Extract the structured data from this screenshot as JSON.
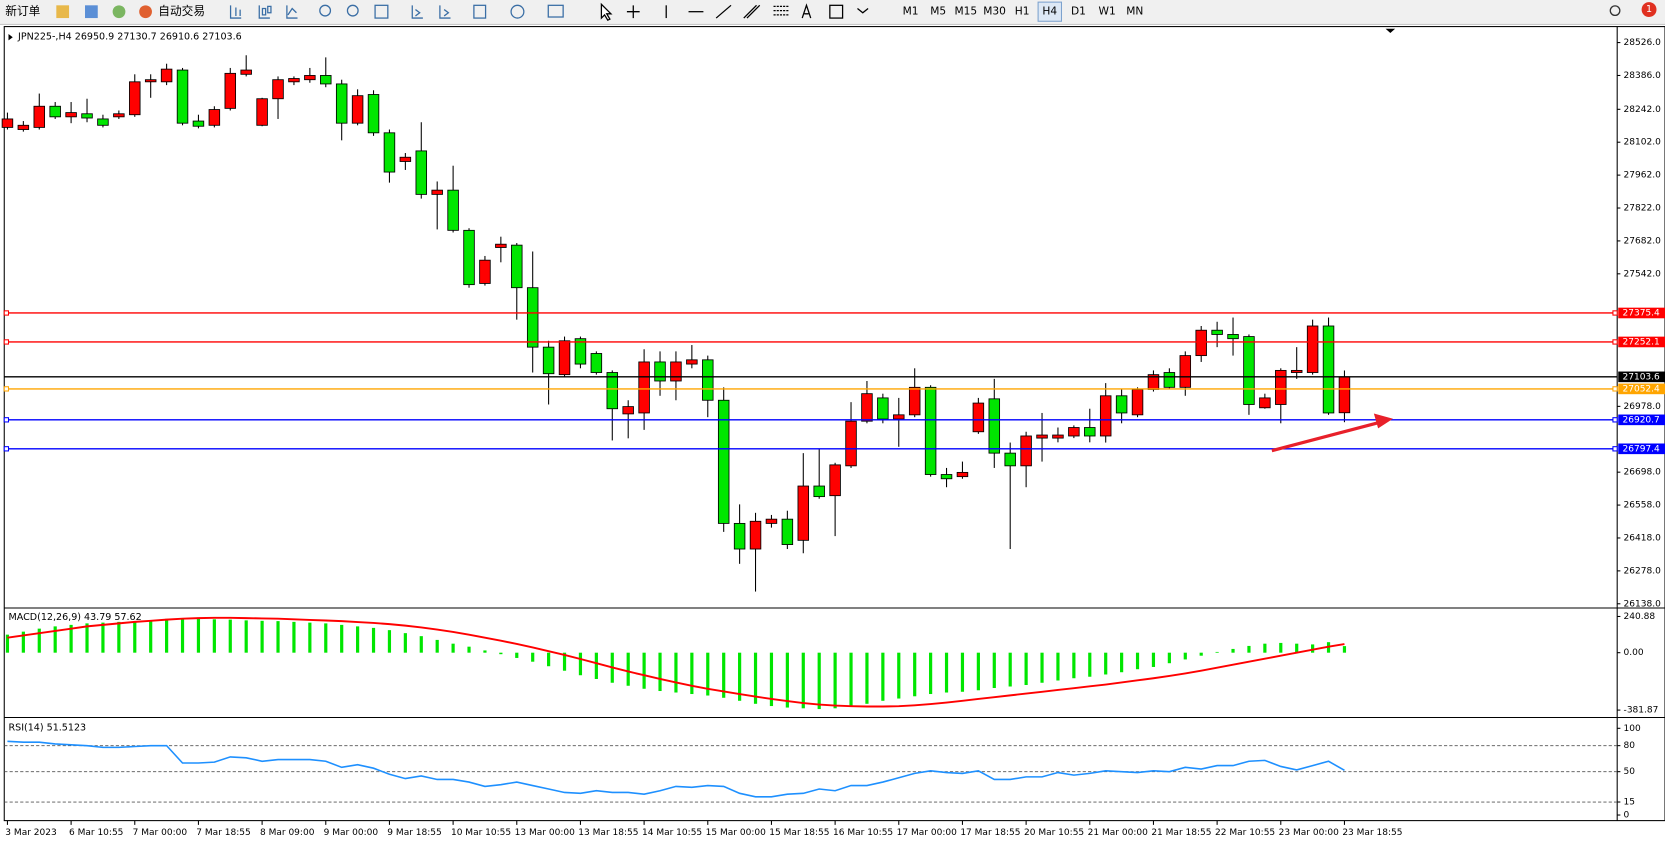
{
  "toolbar": {
    "buttons": [
      "新订单",
      "自动交易"
    ],
    "timeframes": [
      "M1",
      "M5",
      "M15",
      "M30",
      "H1",
      "H4",
      "D1",
      "W1",
      "MN"
    ],
    "notifications": 1
  },
  "chart_data": [
    {
      "type": "candlestick",
      "title": "JPN225-,H4  26950.9 27130.7 26910.6 27103.6",
      "categories": [
        "3 Mar 2023",
        null,
        null,
        null,
        "6 Mar 10:55",
        null,
        null,
        null,
        "7 Mar 00:00",
        null,
        null,
        null,
        "7 Mar 18:55",
        null,
        null,
        null,
        "8 Mar 09:00",
        null,
        null,
        null,
        "9 Mar 00:00",
        null,
        null,
        null,
        "9 Mar 18:55",
        null,
        null,
        null,
        "10 Mar 10:55",
        null,
        null,
        null,
        "13 Mar 00:00",
        null,
        null,
        null,
        "13 Mar 18:55",
        null,
        null,
        null,
        "14 Mar 10:55",
        null,
        null,
        null,
        "15 Mar 00:00",
        null,
        null,
        null,
        "15 Mar 18:55",
        null,
        null,
        null,
        "16 Mar 10:55",
        null,
        null,
        null,
        "17 Mar 00:00",
        null,
        null,
        null,
        "17 Mar 18:55",
        null,
        null,
        null,
        "20 Mar 10:55",
        null,
        null,
        null,
        "21 Mar 00:00",
        null,
        null,
        null,
        "21 Mar 18:55",
        null,
        null,
        null,
        "22 Mar 10:55",
        null,
        null,
        null,
        "23 Mar 00:00",
        null,
        null,
        null,
        "23 Mar 18:55"
      ],
      "open": [
        28165,
        28156,
        28165,
        28255,
        28210,
        28223,
        28201,
        28210,
        28219,
        28359,
        28359,
        28409,
        28192,
        28174,
        28246,
        28391,
        28174,
        28287,
        28359,
        28368,
        28386,
        28350,
        28183,
        28305,
        28142,
        28020,
        28065,
        27880,
        27898,
        27727,
        27501,
        27654,
        27664,
        27483,
        27230,
        27113,
        27266,
        27203,
        27122,
        26946,
        26950,
        27167,
        27086,
        27158,
        27176,
        27004,
        26480,
        26371,
        26480,
        26498,
        26408,
        26639,
        26598,
        26725,
        26915,
        27014,
        26924,
        26942,
        27059,
        26688,
        26679,
        26870,
        27010,
        26779,
        26725,
        26843,
        26843,
        26852,
        26888,
        26852,
        27023,
        26942,
        27050,
        27122,
        27059,
        27194,
        27302,
        27284,
        27275,
        26972,
        26986,
        27122,
        27122,
        27320,
        26950.9
      ],
      "high": [
        28228,
        28192,
        28309,
        28273,
        28273,
        28287,
        28219,
        28237,
        28391,
        28391,
        28436,
        28418,
        28219,
        28255,
        28418,
        28472,
        28291,
        28382,
        28382,
        28418,
        28463,
        28368,
        28327,
        28323,
        28156,
        28056,
        28187,
        27935,
        28002,
        27736,
        27618,
        27700,
        27673,
        27637,
        27257,
        27275,
        27275,
        27212,
        27131,
        27004,
        27221,
        27212,
        27212,
        27239,
        27194,
        27059,
        26561,
        26525,
        26516,
        26534,
        26779,
        26797,
        26738,
        26996,
        27086,
        27032,
        27014,
        27140,
        27068,
        26716,
        26743,
        27014,
        27095,
        26824,
        26870,
        26950,
        26888,
        26897,
        26968,
        27077,
        27050,
        27059,
        27131,
        27140,
        27212,
        27320,
        27338,
        27356,
        27284,
        27032,
        27140,
        27230,
        27347,
        27356,
        27130.7
      ],
      "low": [
        28156,
        28147,
        28156,
        28201,
        28183,
        28187,
        28165,
        28201,
        28210,
        28291,
        28345,
        28174,
        28161,
        28165,
        28237,
        28382,
        28170,
        28201,
        28345,
        28355,
        28336,
        28110,
        28174,
        28129,
        27930,
        27984,
        27862,
        27731,
        27718,
        27483,
        27492,
        27591,
        27347,
        27122,
        26986,
        27104,
        27140,
        27113,
        26833,
        26842,
        26878,
        27023,
        27004,
        27140,
        26932,
        26444,
        26308,
        26190,
        26462,
        26371,
        26353,
        26585,
        26426,
        26716,
        26906,
        26906,
        26806,
        26932,
        26679,
        26634,
        26670,
        26861,
        26716,
        26371,
        26634,
        26743,
        26825,
        26843,
        26825,
        26824,
        26906,
        26932,
        27041,
        27050,
        27023,
        27167,
        27230,
        27194,
        26942,
        26968,
        26906,
        27095,
        27113,
        26942,
        26910.6
      ],
      "close": [
        28201,
        28174,
        28255,
        28210,
        28228,
        28205,
        28174,
        28223,
        28359,
        28368,
        28413,
        28183,
        28170,
        28241,
        28395,
        28409,
        28287,
        28368,
        28373,
        28386,
        28350,
        28183,
        28300,
        28142,
        27975,
        28038,
        27880,
        27898,
        27727,
        27496,
        27600,
        27668,
        27483,
        27230,
        27117,
        27257,
        27158,
        27122,
        26968,
        26977,
        27167,
        27086,
        27167,
        27176,
        27004,
        26480,
        26371,
        26489,
        26498,
        26390,
        26639,
        26594,
        26729,
        26915,
        27032,
        26924,
        26942,
        27059,
        26688,
        26670,
        26697,
        26992,
        26779,
        26725,
        26852,
        26856,
        26856,
        26888,
        26852,
        27023,
        26950,
        27050,
        27113,
        27059,
        27194,
        27302,
        27284,
        27266,
        26986,
        27014,
        27131,
        27131,
        27320,
        26950,
        27103.6
      ],
      "up_color": "#ff0000",
      "down_color": "#00e600",
      "ylim": [
        26129,
        28585
      ],
      "yticks": [
        {
          "value": 28526,
          "label": "28526.0"
        },
        {
          "value": 28386,
          "label": "28386.0"
        },
        {
          "value": 28242,
          "label": "28242.0"
        },
        {
          "value": 28102,
          "label": "28102.0"
        },
        {
          "value": 27962,
          "label": "27962.0"
        },
        {
          "value": 27822,
          "label": "27822.0"
        },
        {
          "value": 27682,
          "label": "27682.0"
        },
        {
          "value": 27542,
          "label": "27542.0"
        },
        {
          "value": 26978,
          "label": "26978.0"
        },
        {
          "value": 26698,
          "label": "26698.0"
        },
        {
          "value": 26558,
          "label": "26558.0"
        },
        {
          "value": 26418,
          "label": "26418.0"
        },
        {
          "value": 26278,
          "label": "26278.0"
        },
        {
          "value": 26138,
          "label": "26138.0"
        }
      ],
      "levels": [
        {
          "value": 27375.4,
          "color": "#ff0000"
        },
        {
          "value": 27252.1,
          "color": "#ff0000"
        },
        {
          "value": 27103.6,
          "color": "#000000"
        },
        {
          "value": 27052.4,
          "color": "#ffa500"
        },
        {
          "value": 26920.7,
          "color": "#0000ff"
        },
        {
          "value": 26797.4,
          "color": "#0000ff"
        }
      ]
    },
    {
      "type": "macd",
      "title": "MACD(12,26,9) 43.79 57.62",
      "values": [
        120,
        140,
        160,
        175,
        185,
        195,
        200,
        205,
        210,
        215,
        225,
        230,
        228,
        222,
        220,
        215,
        212,
        210,
        205,
        200,
        195,
        185,
        175,
        165,
        150,
        130,
        110,
        85,
        60,
        40,
        15,
        -10,
        -35,
        -60,
        -90,
        -120,
        -150,
        -175,
        -200,
        -220,
        -240,
        -255,
        -265,
        -275,
        -285,
        -300,
        -320,
        -340,
        -355,
        -365,
        -370,
        -375,
        -370,
        -355,
        -340,
        -320,
        -305,
        -290,
        -275,
        -265,
        -260,
        -250,
        -235,
        -225,
        -215,
        -200,
        -185,
        -170,
        -160,
        -145,
        -130,
        -110,
        -95,
        -70,
        -45,
        -20,
        5,
        25,
        45,
        60,
        65,
        60,
        55,
        70,
        43.79
      ],
      "signal": [
        100,
        115,
        130,
        145,
        160,
        175,
        185,
        195,
        205,
        212,
        220,
        226,
        230,
        232,
        232,
        230,
        228,
        226,
        222,
        218,
        214,
        210,
        204,
        198,
        190,
        180,
        168,
        154,
        138,
        120,
        100,
        80,
        58,
        35,
        10,
        -15,
        -42,
        -70,
        -98,
        -125,
        -150,
        -175,
        -198,
        -220,
        -240,
        -258,
        -275,
        -292,
        -308,
        -322,
        -335,
        -345,
        -352,
        -356,
        -358,
        -358,
        -356,
        -350,
        -342,
        -332,
        -320,
        -308,
        -296,
        -284,
        -272,
        -260,
        -248,
        -236,
        -224,
        -212,
        -198,
        -184,
        -170,
        -155,
        -138,
        -120,
        -100,
        -80,
        -60,
        -40,
        -20,
        0,
        20,
        40,
        57.62
      ],
      "color": "#00e600",
      "signal_color": "#ff0000",
      "ylim": [
        -410,
        283
      ],
      "yticks": [
        240.88,
        {
          "value": 0,
          "label": "0.00"
        },
        -381.87
      ]
    },
    {
      "type": "line",
      "title": "RSI(14) 51.5123",
      "values": [
        85,
        84,
        84,
        82,
        81,
        80,
        78,
        78,
        79,
        80,
        80,
        60,
        60,
        61,
        67,
        66,
        62,
        64,
        64,
        64,
        62,
        55,
        58,
        54,
        47,
        42,
        45,
        41,
        41,
        38,
        33,
        35,
        38,
        34,
        30,
        26,
        25,
        28,
        26,
        26,
        24,
        28,
        33,
        32,
        34,
        33,
        25,
        21,
        21,
        24,
        25,
        30,
        28,
        34,
        34,
        38,
        43,
        48,
        51,
        49,
        48,
        51,
        41,
        41,
        44,
        44,
        49,
        46,
        48,
        51,
        50,
        49,
        51,
        50,
        55,
        53,
        57,
        57,
        62,
        63,
        56,
        52,
        57,
        62,
        51.5123
      ],
      "color": "#1e90ff",
      "ylim": [
        -4,
        110
      ],
      "yticks": [
        100,
        80,
        50,
        15,
        0
      ],
      "levels": [
        80,
        50,
        15
      ]
    }
  ]
}
